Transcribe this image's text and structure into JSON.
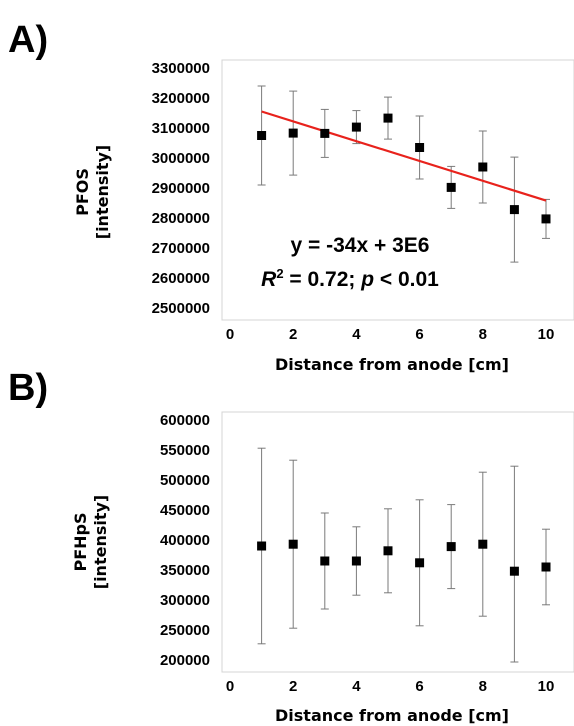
{
  "chart_data": [
    {
      "type": "scatter",
      "panel_label": "A)",
      "x": [
        1,
        2,
        3,
        4,
        5,
        6,
        7,
        8,
        9,
        10
      ],
      "y": [
        3075000,
        3083000,
        3082000,
        3103000,
        3133000,
        3035000,
        2902000,
        2970000,
        2828000,
        2797000
      ],
      "error": [
        165000,
        140000,
        80000,
        55000,
        70000,
        105000,
        70000,
        120000,
        175000,
        65000
      ],
      "xlabel": "Distance from anode [cm]",
      "ylabel_lines": [
        "PFOS",
        "[intensity]"
      ],
      "xlim": [
        0,
        10
      ],
      "ylim": [
        2500000,
        3300000
      ],
      "x_ticks": [
        "0",
        "2",
        "4",
        "6",
        "8",
        "10"
      ],
      "y_ticks": [
        "2500000",
        "2600000",
        "2700000",
        "2800000",
        "2900000",
        "3000000",
        "3100000",
        "3200000",
        "3300000"
      ],
      "trendline": {
        "color": "#e8221c",
        "x": [
          1,
          10
        ],
        "y": [
          3155000,
          2858000
        ]
      },
      "equation": "y = -34x + 3E6",
      "r2_text": {
        "r": "R",
        "sup": "2",
        "middle": " = 0.72; ",
        "p": "p",
        "end": " < 0.01"
      },
      "grid": false
    },
    {
      "type": "scatter",
      "panel_label": "B)",
      "x": [
        1,
        2,
        3,
        4,
        5,
        6,
        7,
        8,
        9,
        10
      ],
      "y": [
        390000,
        393000,
        365000,
        365000,
        382000,
        362000,
        389000,
        393000,
        348000,
        355000
      ],
      "error": [
        163000,
        140000,
        80000,
        57000,
        70000,
        105000,
        70000,
        120000,
        175000,
        63000
      ],
      "xlabel": "Distance from anode [cm]",
      "ylabel_lines": [
        "PFHpS",
        "[intensity]"
      ],
      "xlim": [
        0,
        10
      ],
      "ylim": [
        200000,
        600000
      ],
      "x_ticks": [
        "0",
        "2",
        "4",
        "6",
        "8",
        "10"
      ],
      "y_ticks": [
        "200000",
        "250000",
        "300000",
        "350000",
        "400000",
        "450000",
        "500000",
        "550000",
        "600000"
      ],
      "grid": false
    }
  ]
}
